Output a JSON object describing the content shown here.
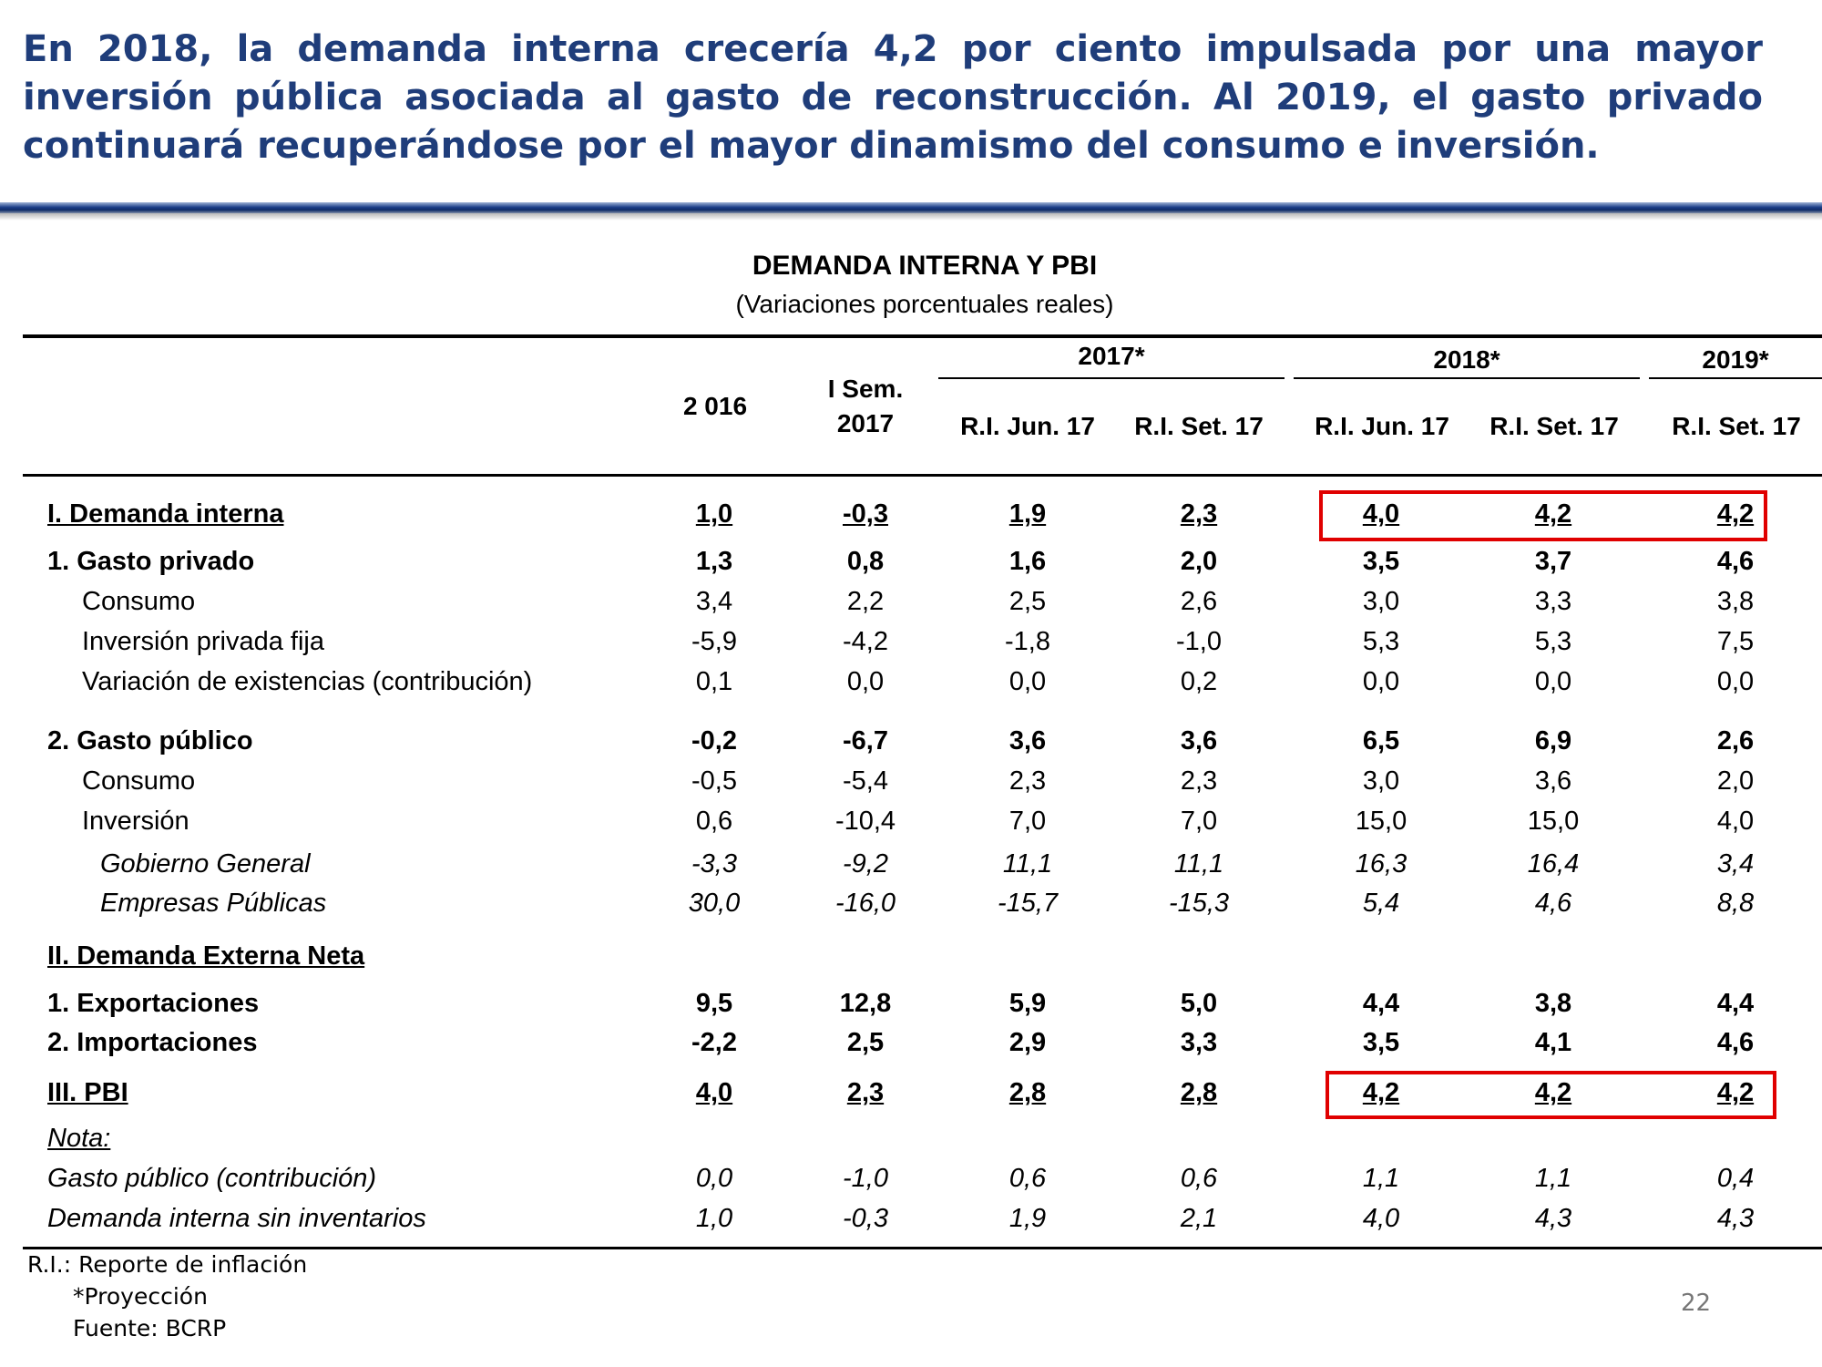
{
  "headline": "En 2018, la demanda interna crecería 4,2 por ciento impulsada por una mayor inversión pública asociada al gasto de reconstrucción. Al 2019, el gasto privado continuará recuperándose por el mayor dinamismo del consumo e inversión.",
  "table": {
    "title": "DEMANDA INTERNA Y PBI",
    "subtitle": "(Variaciones porcentuales reales)",
    "col_2016": "2 016",
    "col_isem_1": "I Sem.",
    "col_isem_2": "2017",
    "group_2017": "2017*",
    "group_2018": "2018*",
    "group_2019": "2019*",
    "sub_2017_jun": "R.I. Jun. 17",
    "sub_2017_set": "R.I. Set. 17",
    "sub_2018_jun": "R.I. Jun. 17",
    "sub_2018_set": "R.I. Set. 17",
    "sub_2019_set": "R.I. Set. 17",
    "rows": [
      {
        "label": "I. Demanda interna",
        "values": [
          "1,0",
          "-0,3",
          "1,9",
          "2,3",
          "4,0",
          "4,2",
          "4,2"
        ]
      },
      {
        "label": "1. Gasto privado",
        "values": [
          "1,3",
          "0,8",
          "1,6",
          "2,0",
          "3,5",
          "3,7",
          "4,6"
        ]
      },
      {
        "label": "Consumo",
        "values": [
          "3,4",
          "2,2",
          "2,5",
          "2,6",
          "3,0",
          "3,3",
          "3,8"
        ]
      },
      {
        "label": "Inversión privada fija",
        "values": [
          "-5,9",
          "-4,2",
          "-1,8",
          "-1,0",
          "5,3",
          "5,3",
          "7,5"
        ]
      },
      {
        "label": "Variación de existencias (contribución)",
        "values": [
          "0,1",
          "0,0",
          "0,0",
          "0,2",
          "0,0",
          "0,0",
          "0,0"
        ]
      },
      {
        "label": "2. Gasto público",
        "values": [
          "-0,2",
          "-6,7",
          "3,6",
          "3,6",
          "6,5",
          "6,9",
          "2,6"
        ]
      },
      {
        "label": "Consumo",
        "values": [
          "-0,5",
          "-5,4",
          "2,3",
          "2,3",
          "3,0",
          "3,6",
          "2,0"
        ]
      },
      {
        "label": "Inversión",
        "values": [
          "0,6",
          "-10,4",
          "7,0",
          "7,0",
          "15,0",
          "15,0",
          "4,0"
        ]
      },
      {
        "label": "Gobierno General",
        "values": [
          "-3,3",
          "-9,2",
          "11,1",
          "11,1",
          "16,3",
          "16,4",
          "3,4"
        ]
      },
      {
        "label": "Empresas Públicas",
        "values": [
          "30,0",
          "-16,0",
          "-15,7",
          "-15,3",
          "5,4",
          "4,6",
          "8,8"
        ]
      },
      {
        "label": "II. Demanda Externa Neta",
        "values": [
          "",
          "",
          "",
          "",
          "",
          "",
          ""
        ]
      },
      {
        "label": "1. Exportaciones",
        "values": [
          "9,5",
          "12,8",
          "5,9",
          "5,0",
          "4,4",
          "3,8",
          "4,4"
        ]
      },
      {
        "label": "2. Importaciones",
        "values": [
          "-2,2",
          "2,5",
          "2,9",
          "3,3",
          "3,5",
          "4,1",
          "4,6"
        ]
      },
      {
        "label": "III. PBI",
        "values": [
          "4,0",
          "2,3",
          "2,8",
          "2,8",
          "4,2",
          "4,2",
          "4,2"
        ]
      },
      {
        "label": "Nota:",
        "values": [
          "",
          "",
          "",
          "",
          "",
          "",
          ""
        ]
      },
      {
        "label": "Gasto público (contribución)",
        "values": [
          "0,0",
          "-1,0",
          "0,6",
          "0,6",
          "1,1",
          "1,1",
          "0,4"
        ]
      },
      {
        "label": "Demanda interna sin inventarios",
        "values": [
          "1,0",
          "-0,3",
          "1,9",
          "2,1",
          "4,0",
          "4,3",
          "4,3"
        ]
      }
    ]
  },
  "footnotes": {
    "ri": "R.I.: Reporte de inflación",
    "proyeccion": "*Proyección",
    "fuente": "Fuente: BCRP"
  },
  "page_number": "22",
  "colors": {
    "headline": "#1f3d7a",
    "highlight": "#e00000"
  }
}
